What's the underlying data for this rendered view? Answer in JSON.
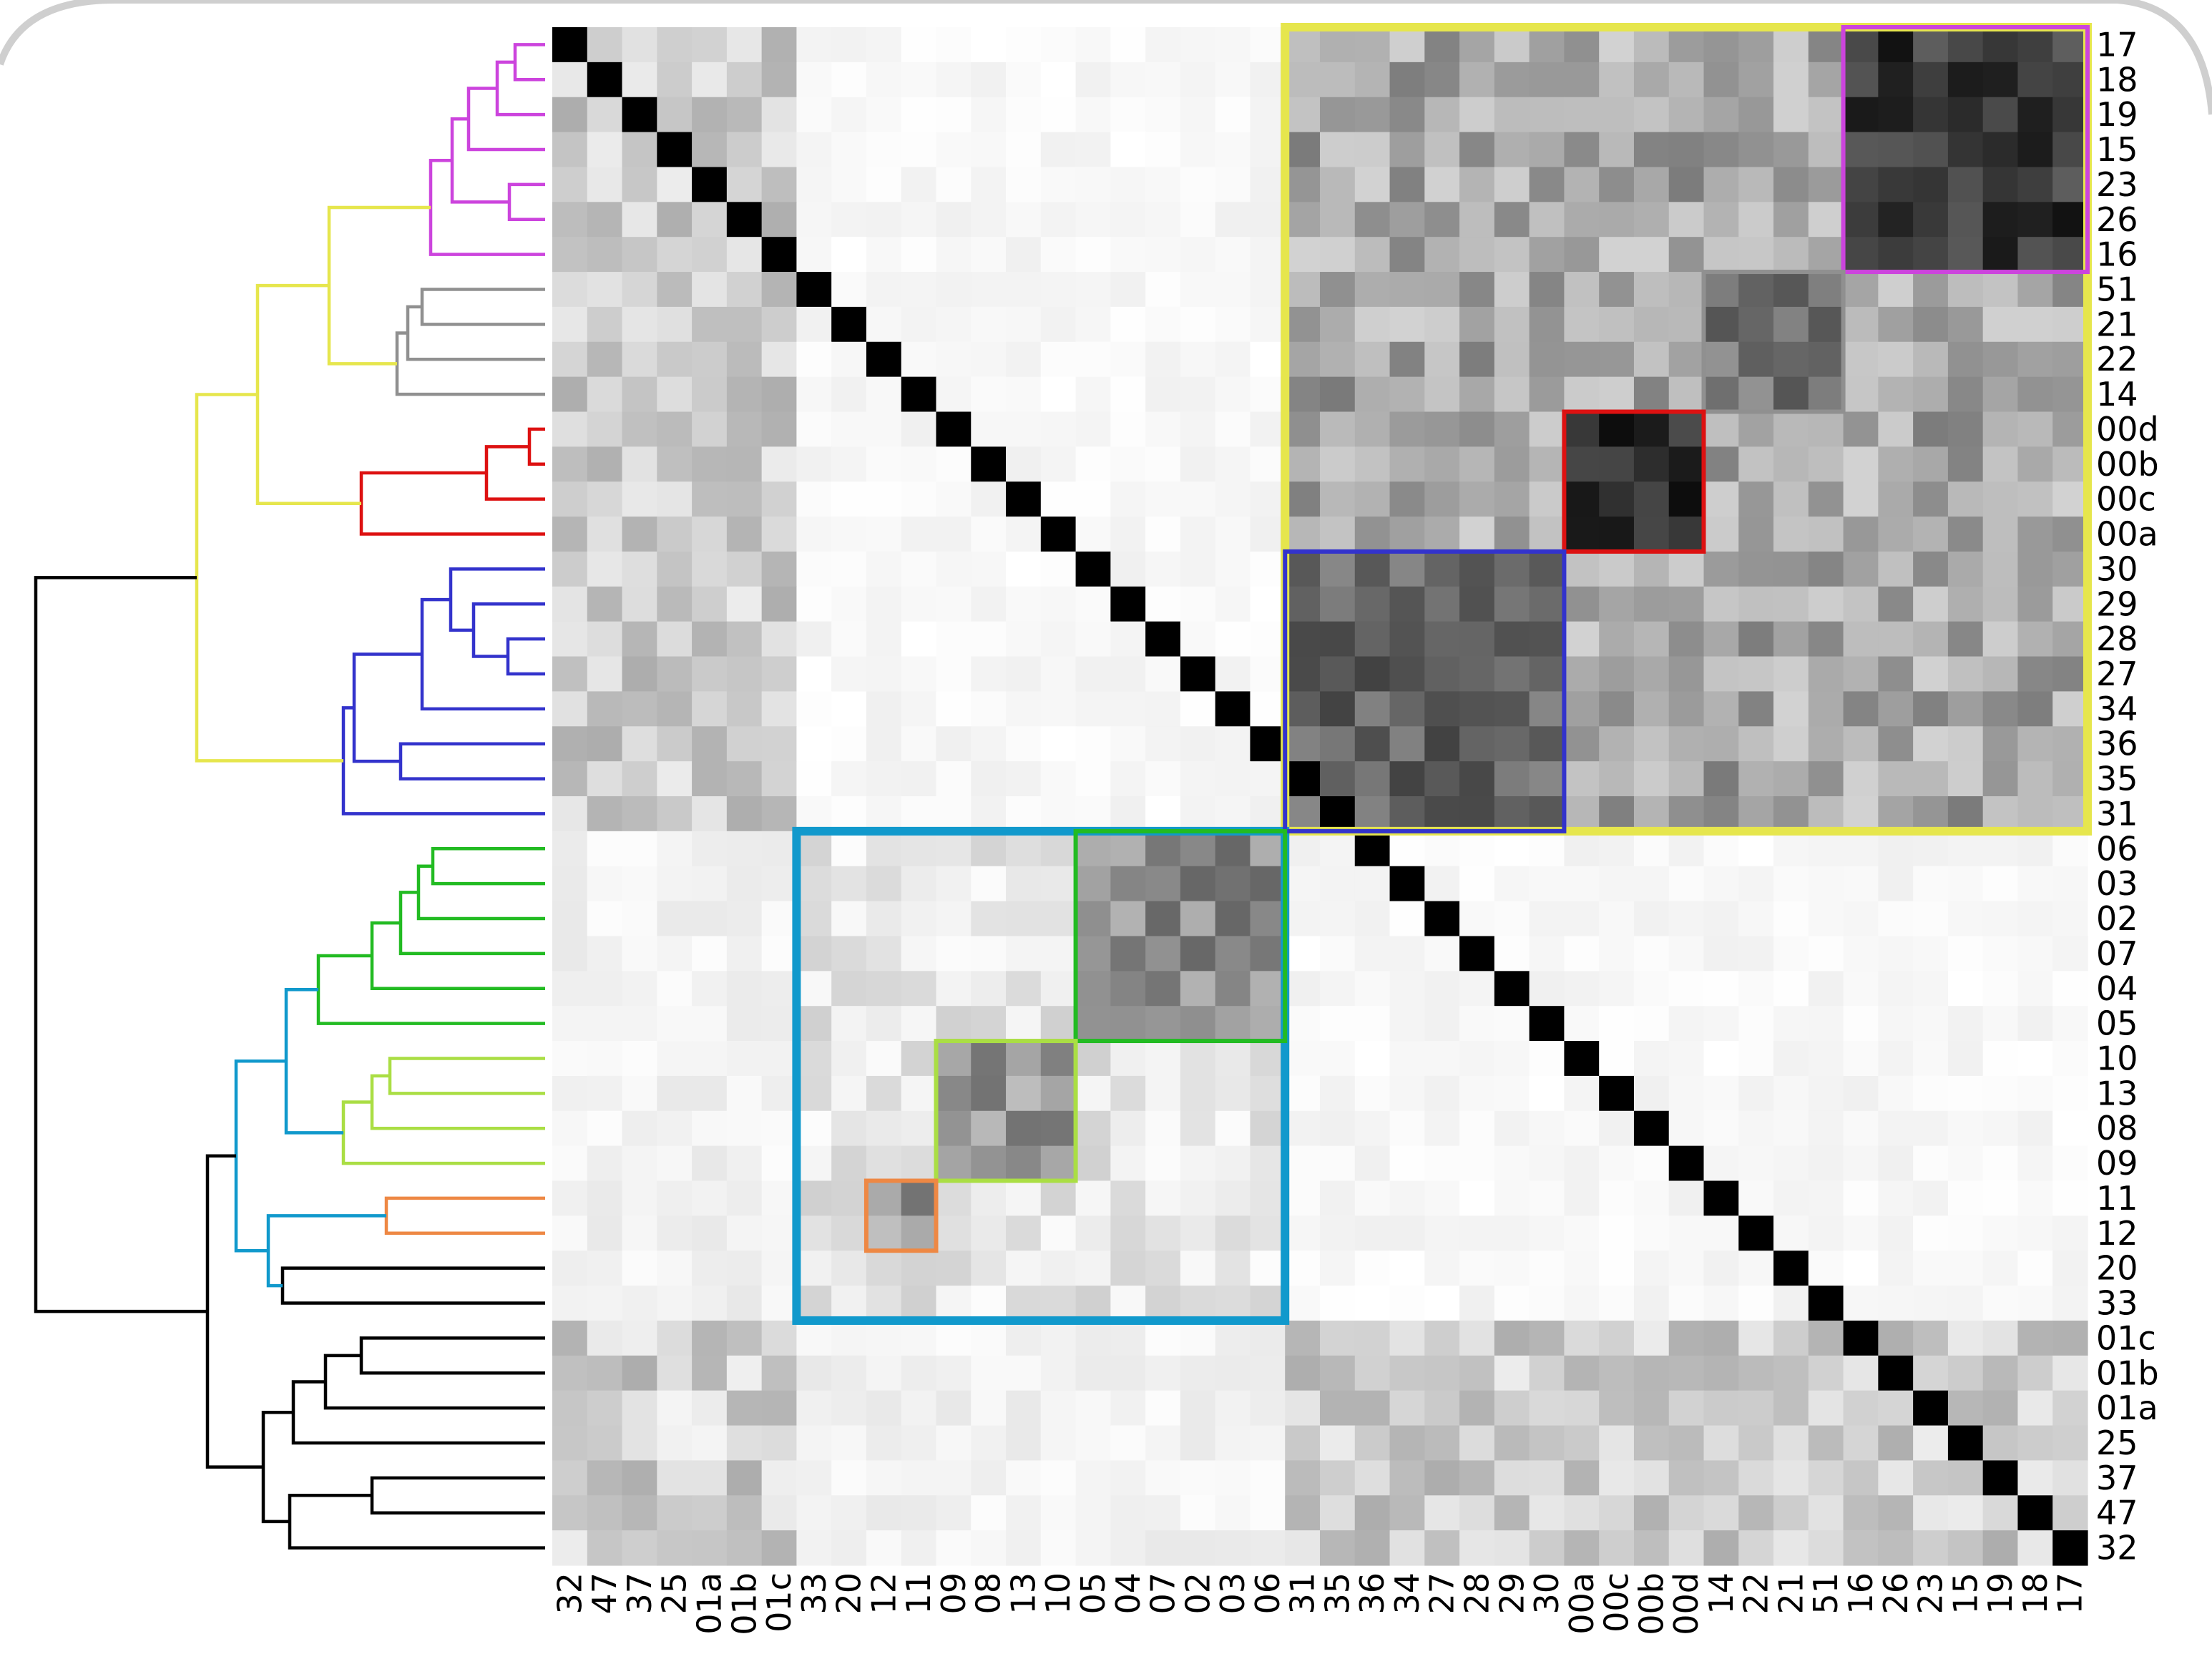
{
  "chart_data": {
    "type": "heatmap",
    "title": "",
    "xlabel": "",
    "ylabel": "",
    "row_labels": [
      "17",
      "18",
      "19",
      "15",
      "23",
      "26",
      "16",
      "51",
      "21",
      "22",
      "14",
      "00d",
      "00b",
      "00c",
      "00a",
      "30",
      "29",
      "28",
      "27",
      "34",
      "36",
      "35",
      "31",
      "06",
      "03",
      "02",
      "07",
      "04",
      "05",
      "10",
      "13",
      "08",
      "09",
      "11",
      "12",
      "20",
      "33",
      "01c",
      "01b",
      "01a",
      "25",
      "37",
      "47",
      "32"
    ],
    "col_labels": [
      "32",
      "47",
      "37",
      "25",
      "01a",
      "01b",
      "01c",
      "33",
      "20",
      "12",
      "11",
      "09",
      "08",
      "13",
      "10",
      "05",
      "04",
      "07",
      "02",
      "03",
      "06",
      "31",
      "35",
      "36",
      "34",
      "27",
      "28",
      "29",
      "30",
      "00a",
      "00c",
      "00b",
      "00d",
      "14",
      "22",
      "21",
      "51",
      "16",
      "26",
      "23",
      "15",
      "19",
      "18",
      "17"
    ],
    "value_range": [
      0,
      1
    ],
    "colormap": "white (0) to black (1), diagonal = 1",
    "grid": false,
    "legend": "none",
    "dendrogram": "left",
    "clusters": [
      {
        "color": "#e6e64d",
        "members": [
          "17",
          "18",
          "19",
          "15",
          "23",
          "26",
          "16",
          "51",
          "21",
          "22",
          "14",
          "00d",
          "00b",
          "00c",
          "00a",
          "30",
          "29",
          "28",
          "27",
          "34",
          "36",
          "35",
          "31"
        ]
      },
      {
        "color": "#cc44dd",
        "members": [
          "17",
          "18",
          "19",
          "15",
          "23",
          "26",
          "16"
        ]
      },
      {
        "color": "#909090",
        "members": [
          "51",
          "21",
          "22",
          "14"
        ]
      },
      {
        "color": "#dd1111",
        "members": [
          "00d",
          "00b",
          "00c",
          "00a"
        ]
      },
      {
        "color": "#3333cc",
        "members": [
          "30",
          "29",
          "28",
          "27",
          "34",
          "36",
          "35",
          "31"
        ]
      },
      {
        "color": "#1199cc",
        "members": [
          "06",
          "03",
          "02",
          "07",
          "04",
          "05",
          "10",
          "13",
          "08",
          "09",
          "11",
          "12",
          "20",
          "33"
        ]
      },
      {
        "color": "#22bb22",
        "members": [
          "06",
          "03",
          "02",
          "07",
          "04",
          "05"
        ]
      },
      {
        "color": "#aade44",
        "members": [
          "10",
          "13",
          "08",
          "09"
        ]
      },
      {
        "color": "#ee8844",
        "members": [
          "11",
          "12"
        ]
      }
    ],
    "block_values": {
      "within_yellow_cluster": 0.35,
      "within_magenta_cluster": 0.78,
      "within_gray_cluster": 0.55,
      "within_red_cluster": 0.85,
      "within_blue_cluster": 0.6,
      "within_blue_teal_cluster": 0.1,
      "within_green_cluster": 0.45,
      "within_lime_cluster": 0.4,
      "within_orange_cluster": 0.4,
      "black_rows_vs_yellow_cluster": 0.2,
      "black_rows_vs_teal_cluster": 0.05,
      "yellow_cluster_vs_teal_cluster": 0.03
    }
  }
}
